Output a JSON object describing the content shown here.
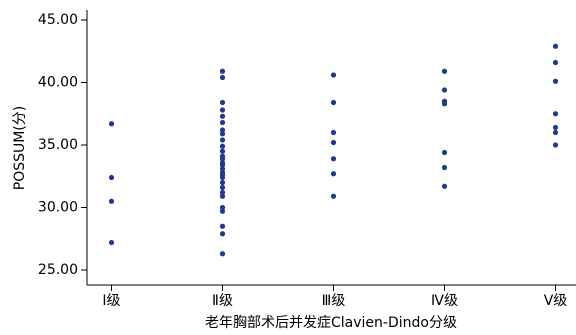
{
  "chart_data": {
    "type": "strip",
    "x_label": "老年胸部术后并发症Clavien-Dindo分级",
    "y_label": "POSSUM(分)",
    "categories": [
      "Ⅰ级",
      "Ⅱ级",
      "Ⅲ级",
      "Ⅳ级",
      "Ⅴ级"
    ],
    "values": [
      [
        36.7,
        32.4,
        30.5,
        27.2
      ],
      [
        40.9,
        40.4,
        38.4,
        37.8,
        37.3,
        36.8,
        36.2,
        35.9,
        35.4,
        34.9,
        34.5,
        34.1,
        33.9,
        33.6,
        33.4,
        33.1,
        32.8,
        32.6,
        32.4,
        32.0,
        31.6,
        31.2,
        30.9,
        30.0,
        29.7,
        28.5,
        27.9,
        26.3
      ],
      [
        40.6,
        38.4,
        36.0,
        35.2,
        33.9,
        32.7,
        30.9
      ],
      [
        40.9,
        39.4,
        38.5,
        38.3,
        34.4,
        33.2,
        31.7
      ],
      [
        42.9,
        41.6,
        40.1,
        37.5,
        36.4,
        36.0,
        35.0
      ]
    ],
    "color": "#1f3b8f",
    "ylim": [
      23.8,
      45.8
    ],
    "yticks": [
      {
        "value": 25,
        "label": "25.00"
      },
      {
        "value": 30,
        "label": "30.00"
      },
      {
        "value": 35,
        "label": "35.00"
      },
      {
        "value": 40,
        "label": "40.00"
      },
      {
        "value": 45,
        "label": "45.00"
      }
    ]
  }
}
